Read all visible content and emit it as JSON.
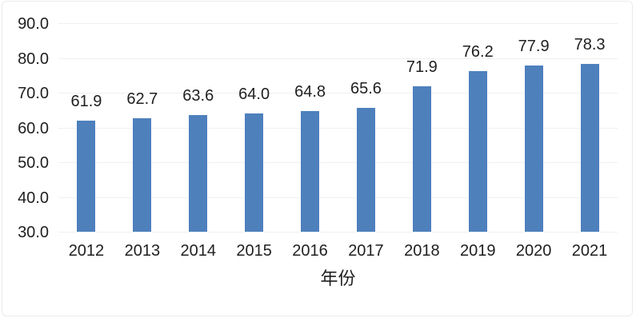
{
  "chart_data": {
    "type": "bar",
    "categories": [
      "2012",
      "2013",
      "2014",
      "2015",
      "2016",
      "2017",
      "2018",
      "2019",
      "2020",
      "2021"
    ],
    "values": [
      61.9,
      62.7,
      63.6,
      64.0,
      64.8,
      65.6,
      71.9,
      76.2,
      77.9,
      78.3
    ],
    "title": "",
    "xlabel": "年份",
    "ylabel": "",
    "ylim": [
      30,
      90
    ],
    "ytick_step": 10,
    "ytick_labels": [
      "30.0",
      "40.0",
      "50.0",
      "60.0",
      "70.0",
      "80.0",
      "90.0"
    ],
    "value_label_decimals": 1,
    "grid": "horizontal",
    "legend": "none",
    "colors": {
      "bar": "#4e80bc",
      "grid": "#f0f0f0",
      "text": "#1f1f1f"
    }
  }
}
